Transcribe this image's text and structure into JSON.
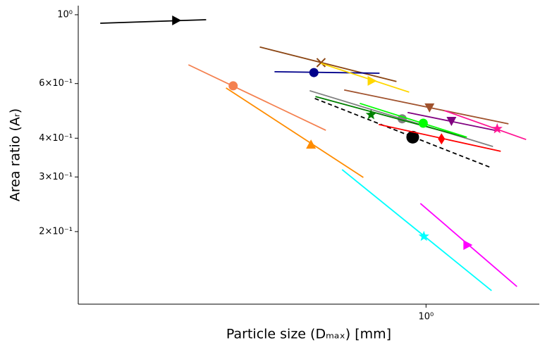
{
  "chart_data": {
    "type": "segments",
    "xlabel": "Particle size (Dₘₐₓ) [mm]",
    "ylabel": "Area ratio (Aᵣ)",
    "xscale": "log",
    "yscale": "log",
    "xlim": [
      0.104,
      2.09
    ],
    "ylim": [
      0.1167,
      1.07
    ],
    "xticks": [
      {
        "value": 1,
        "label": "10⁰"
      }
    ],
    "yticks": [
      {
        "value": 1,
        "label": "10⁰"
      },
      {
        "value": 0.6,
        "label": "6×10⁻¹"
      },
      {
        "value": 0.4,
        "label": "4×10⁻¹"
      },
      {
        "value": 0.3,
        "label": "3×10⁻¹"
      },
      {
        "value": 0.2,
        "label": "2×10⁻¹"
      }
    ],
    "series": [
      {
        "color": "#000000",
        "x": [
          0.12,
          0.239
        ],
        "values": [
          0.939,
          0.964
        ],
        "marker": "triangle_right",
        "marker_x": 0.197,
        "marker_y": 0.959
      },
      {
        "color": "#f4804f",
        "x": [
          0.213,
          0.521
        ],
        "values": [
          0.69,
          0.424
        ],
        "marker": "circle",
        "marker_x": 0.285,
        "marker_y": 0.59
      },
      {
        "color": "#ff8c00",
        "x": [
          0.272,
          0.665
        ],
        "values": [
          0.581,
          0.299
        ],
        "marker": "triangle_up",
        "marker_x": 0.473,
        "marker_y": 0.382
      },
      {
        "color": "#8b4513",
        "x": [
          0.339,
          0.825
        ],
        "values": [
          0.787,
          0.609
        ],
        "marker": "x",
        "marker_x": 0.505,
        "marker_y": 0.701
      },
      {
        "color": "#00008b",
        "x": [
          0.373,
          0.739
        ],
        "values": [
          0.655,
          0.648
        ],
        "marker": "circle",
        "marker_x": 0.482,
        "marker_y": 0.651
      },
      {
        "color": "#ffd700",
        "x": [
          0.505,
          0.896
        ],
        "values": [
          0.697,
          0.563
        ],
        "marker": "triangle_right",
        "marker_x": 0.703,
        "marker_y": 0.612
      },
      {
        "color": "#808080",
        "x": [
          0.469,
          1.546
        ],
        "values": [
          0.569,
          0.376
        ],
        "marker": "circle",
        "marker_x": 0.856,
        "marker_y": 0.462
      },
      {
        "color": "#000000",
        "linestyle": "dashed",
        "x": [
          0.485,
          1.511
        ],
        "values": [
          0.537,
          0.323
        ],
        "marker": "circle_large",
        "marker_x": 0.917,
        "marker_y": 0.403
      },
      {
        "color": "#008000",
        "x": [
          0.487,
          1.293
        ],
        "values": [
          0.545,
          0.403
        ],
        "marker": "star",
        "marker_x": 0.699,
        "marker_y": 0.476
      },
      {
        "color": "#00ff00",
        "x": [
          0.65,
          1.305
        ],
        "values": [
          0.518,
          0.403
        ],
        "marker": "circle",
        "marker_x": 0.982,
        "marker_y": 0.447
      },
      {
        "color": "#a0522d",
        "x": [
          0.587,
          1.71
        ],
        "values": [
          0.572,
          0.445
        ],
        "marker": "triangle_down",
        "marker_x": 1.023,
        "marker_y": 0.502
      },
      {
        "color": "#800080",
        "x": [
          0.887,
          1.567
        ],
        "values": [
          0.484,
          0.424
        ],
        "marker": "triangle_down",
        "marker_x": 1.18,
        "marker_y": 0.454
      },
      {
        "color": "#ff0000",
        "x": [
          0.735,
          1.626
        ],
        "values": [
          0.443,
          0.363
        ],
        "marker": "diamond",
        "marker_x": 1.106,
        "marker_y": 0.398
      },
      {
        "color": "#ff1493",
        "x": [
          1.127,
          1.918
        ],
        "values": [
          0.491,
          0.396
        ],
        "marker": "star",
        "marker_x": 1.589,
        "marker_y": 0.429
      },
      {
        "color": "#00ffff",
        "x": [
          0.579,
          1.532
        ],
        "values": [
          0.317,
          0.129
        ],
        "marker": "star",
        "marker_x": 0.986,
        "marker_y": 0.193
      },
      {
        "color": "#ff00ff",
        "x": [
          0.964,
          1.807
        ],
        "values": [
          0.2465,
          0.133
        ],
        "marker": "triangle_right",
        "marker_x": 1.311,
        "marker_y": 0.181
      }
    ]
  }
}
